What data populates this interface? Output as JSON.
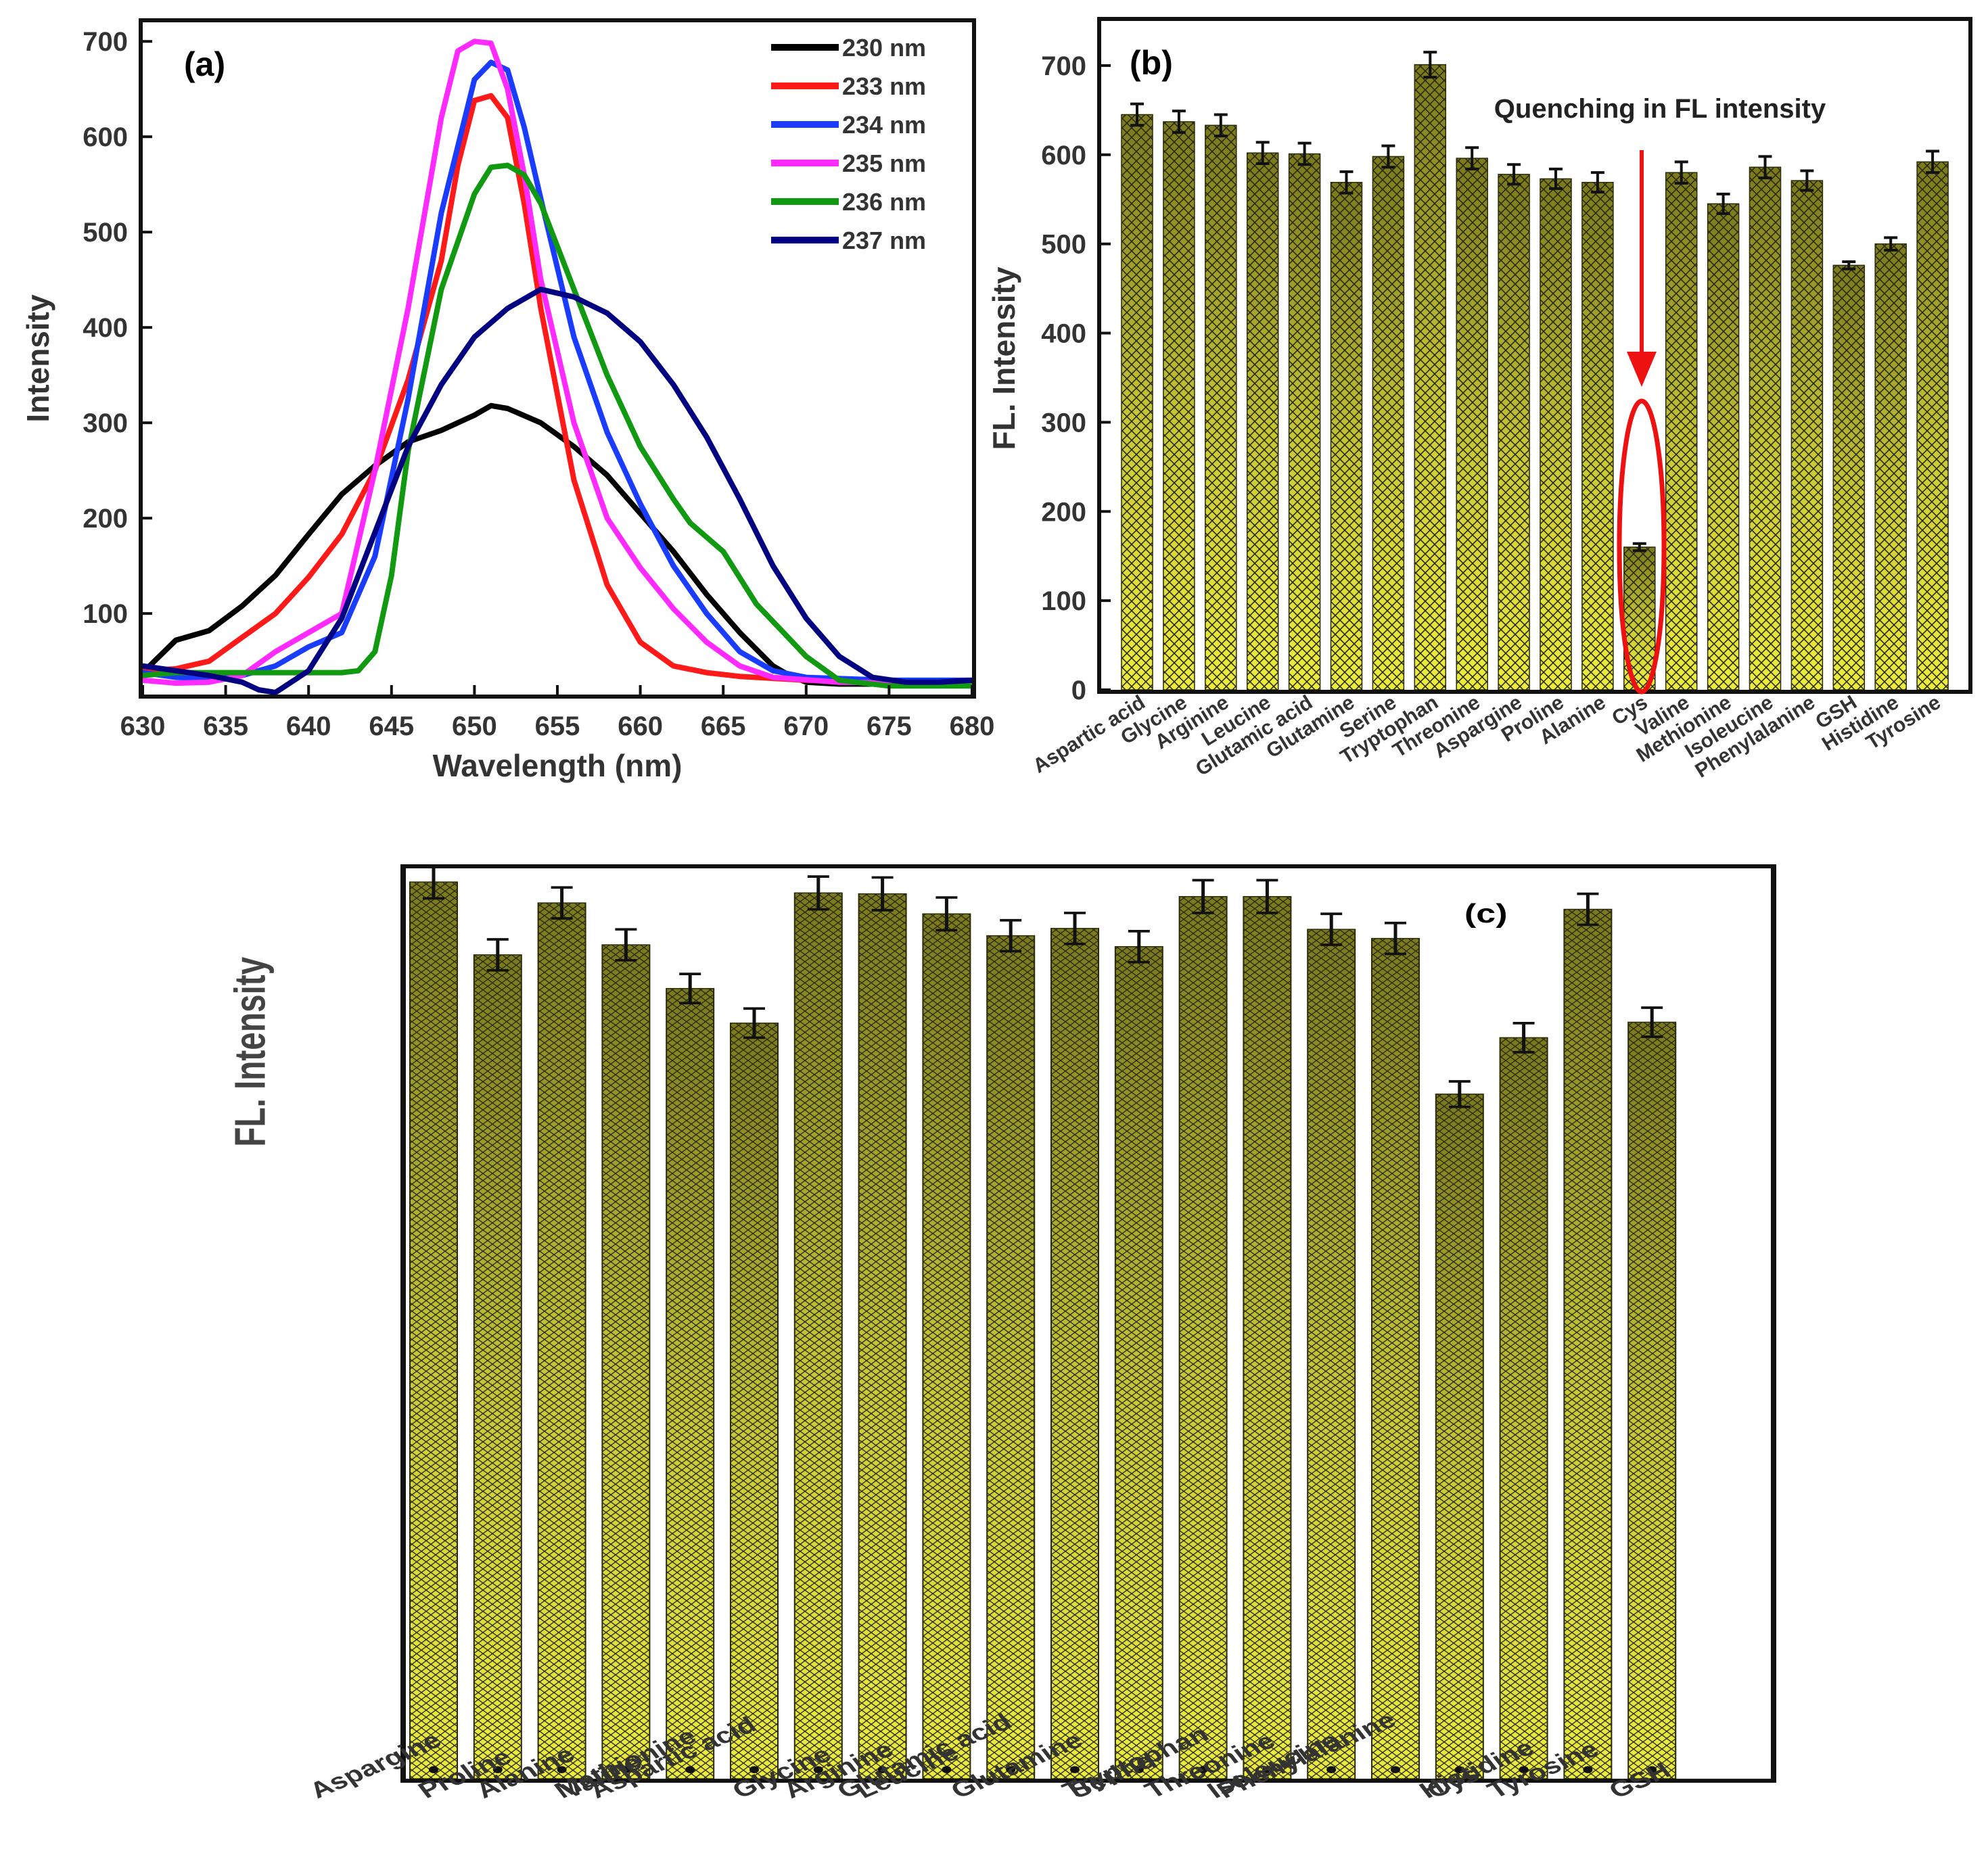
{
  "colors": {
    "bar_fill_top": "#7a7a1e",
    "bar_fill_bottom": "#e8e83a",
    "hatch": "#2b2b0f",
    "frame": "#111111",
    "quench": "#ee1111"
  },
  "chart_data": [
    {
      "id": "a",
      "type": "line",
      "panel_label": "(a)",
      "xlabel": "Wavelength (nm)",
      "ylabel": "Intensity",
      "xlim": [
        630,
        680
      ],
      "ylim": [
        15,
        720
      ],
      "xticks": [
        630,
        635,
        640,
        645,
        650,
        655,
        660,
        665,
        670,
        675,
        680
      ],
      "yticks": [
        100,
        200,
        300,
        400,
        500,
        600,
        700
      ],
      "series": [
        {
          "name": "230 nm",
          "color": "#000000",
          "x": [
            630,
            631,
            632,
            634,
            636,
            638,
            640,
            642,
            644,
            646,
            648,
            650,
            651,
            652,
            654,
            656,
            658,
            660,
            662,
            664,
            666,
            668,
            669,
            670,
            672,
            675,
            678,
            680
          ],
          "y": [
            38,
            55,
            72,
            82,
            108,
            140,
            183,
            225,
            255,
            280,
            292,
            308,
            318,
            315,
            300,
            275,
            245,
            205,
            165,
            120,
            80,
            45,
            35,
            28,
            26,
            26,
            26,
            26
          ]
        },
        {
          "name": "233 nm",
          "color": "#ff1a1a",
          "x": [
            630,
            632,
            634,
            636,
            638,
            640,
            642,
            644,
            646,
            648,
            649,
            650,
            651,
            652,
            653,
            654,
            656,
            658,
            660,
            662,
            664,
            666,
            670,
            675,
            680
          ],
          "y": [
            40,
            42,
            50,
            75,
            100,
            138,
            183,
            250,
            345,
            470,
            570,
            638,
            643,
            620,
            530,
            420,
            240,
            130,
            70,
            45,
            38,
            34,
            30,
            28,
            28
          ]
        },
        {
          "name": "234 nm",
          "color": "#1a3cff",
          "x": [
            630,
            632,
            634,
            636,
            638,
            640,
            642,
            644,
            646,
            648,
            650,
            651,
            652,
            653,
            654,
            656,
            658,
            660,
            662,
            664,
            666,
            668,
            670,
            675,
            680
          ],
          "y": [
            38,
            33,
            32,
            35,
            45,
            65,
            80,
            160,
            325,
            520,
            660,
            678,
            670,
            610,
            535,
            390,
            290,
            215,
            150,
            100,
            60,
            40,
            33,
            30,
            30
          ]
        },
        {
          "name": "235 nm",
          "color": "#ff2aff",
          "x": [
            630,
            632,
            634,
            636,
            638,
            640,
            642,
            644,
            646,
            648,
            649,
            650,
            651,
            652,
            653,
            654,
            656,
            658,
            660,
            662,
            664,
            666,
            668,
            672,
            676,
            680
          ],
          "y": [
            30,
            27,
            28,
            35,
            60,
            80,
            100,
            250,
            420,
            620,
            690,
            700,
            698,
            650,
            560,
            450,
            300,
            200,
            148,
            105,
            70,
            45,
            33,
            28,
            27,
            27
          ]
        },
        {
          "name": "236 nm",
          "color": "#119911",
          "x": [
            630,
            632,
            634,
            636,
            638,
            640,
            642,
            643,
            644,
            645,
            646,
            648,
            650,
            651,
            652,
            653,
            654,
            656,
            658,
            660,
            662,
            663,
            665,
            667,
            670,
            672,
            675,
            678,
            680
          ],
          "y": [
            35,
            38,
            38,
            38,
            38,
            38,
            38,
            40,
            60,
            140,
            270,
            440,
            540,
            568,
            570,
            560,
            530,
            440,
            350,
            275,
            220,
            195,
            165,
            110,
            55,
            30,
            24,
            24,
            24
          ]
        },
        {
          "name": "237 nm",
          "color": "#000080",
          "x": [
            630,
            632,
            634,
            636,
            637,
            638,
            640,
            642,
            644,
            646,
            648,
            650,
            652,
            654,
            656,
            658,
            660,
            662,
            664,
            666,
            668,
            670,
            672,
            674,
            676,
            678,
            680
          ],
          "y": [
            45,
            40,
            35,
            28,
            20,
            15,
            40,
            95,
            185,
            275,
            340,
            390,
            420,
            440,
            432,
            415,
            385,
            340,
            285,
            220,
            150,
            95,
            55,
            33,
            28,
            28,
            30
          ]
        }
      ]
    },
    {
      "id": "b",
      "type": "bar",
      "panel_label": "(b)",
      "ylabel": "FL. Intensity",
      "ylim": [
        0,
        750
      ],
      "yticks": [
        0,
        100,
        200,
        300,
        400,
        500,
        600,
        700
      ],
      "categories": [
        "Aspartic acid",
        "Glycine",
        "Arginine",
        "Leucine",
        "Glutamic acid",
        "Glutamine",
        "Serine",
        "Tryptophan",
        "Threonine",
        "Aspargine",
        "Proline",
        "Alanine",
        "Cys",
        "Valine",
        "Methionine",
        "Isoleucine",
        "Phenylalanine",
        "GSH",
        "Histidine",
        "Tyrosine"
      ],
      "values": [
        645,
        637,
        633,
        602,
        601,
        569,
        598,
        701,
        596,
        578,
        573,
        569,
        160,
        580,
        545,
        586,
        571,
        476,
        500,
        592
      ],
      "errors": [
        12,
        12,
        12,
        12,
        12,
        12,
        12,
        14,
        12,
        11,
        11,
        11,
        4,
        12,
        11,
        12,
        11,
        4,
        7,
        12
      ],
      "annotation": "Quenching in FL intensity"
    },
    {
      "id": "c",
      "type": "bar",
      "panel_label": "(c)",
      "ylabel": "FL. Intensity",
      "ylim": [
        0,
        1
      ],
      "categories": [
        "Aspargine",
        "Proline",
        "Alanine",
        "Valine",
        "Methionine",
        "Aspartic acid",
        "Glycine",
        "Arginine",
        "Leucine",
        "Glutamic acid",
        "Glutamine",
        "Serine",
        "Tryptophan",
        "Threonine",
        "Isoleucine",
        "Phenylalanine",
        "Cys",
        "Histidine",
        "Tyrosine",
        "GSH"
      ],
      "values": [
        0.985,
        0.905,
        0.962,
        0.916,
        0.868,
        0.83,
        0.973,
        0.972,
        0.95,
        0.926,
        0.934,
        0.914,
        0.969,
        0.969,
        0.933,
        0.923,
        0.752,
        0.814,
        0.955,
        0.831
      ],
      "errors": [
        0.018,
        0.017,
        0.017,
        0.017,
        0.016,
        0.016,
        0.018,
        0.018,
        0.018,
        0.017,
        0.017,
        0.017,
        0.018,
        0.018,
        0.017,
        0.017,
        0.014,
        0.016,
        0.017,
        0.016
      ]
    }
  ]
}
